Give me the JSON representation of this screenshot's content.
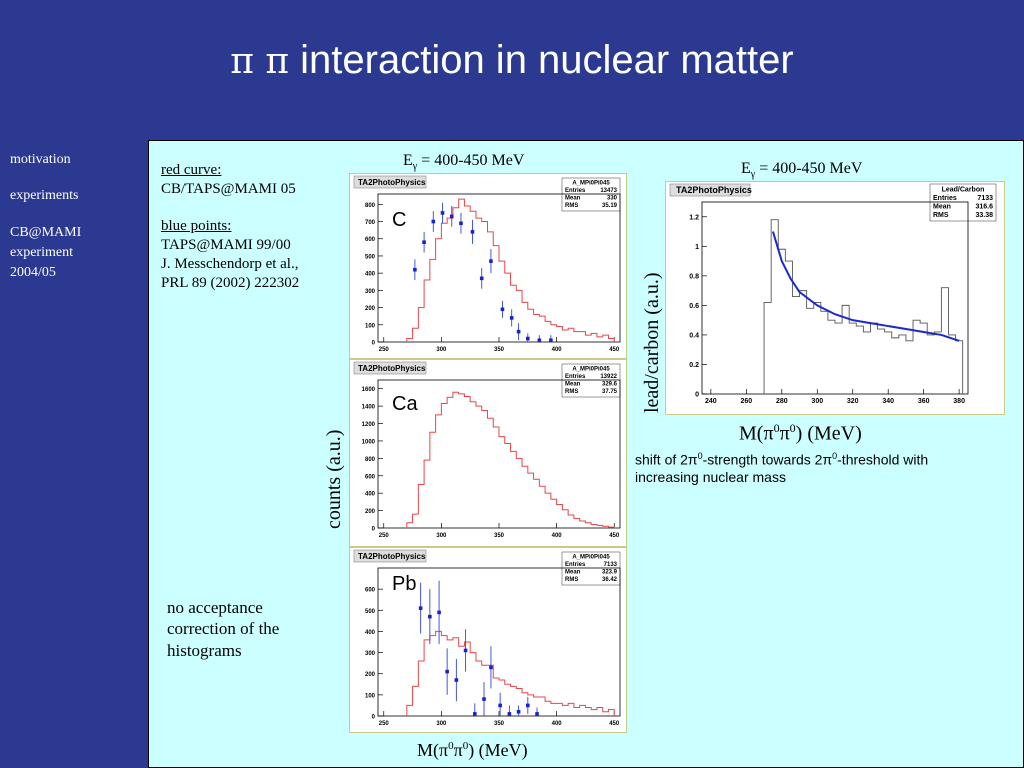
{
  "title": {
    "prefix": "π π",
    "text": " interaction in nuclear matter"
  },
  "sidebar": {
    "items": [
      "motivation",
      "experiments",
      "CB@MAMI",
      "experiment",
      "2004/05"
    ]
  },
  "notes": {
    "red_head": "red curve:",
    "red_body": "CB/TAPS@MAMI 05",
    "blue_head": "blue points:",
    "blue_l1": "TAPS@MAMI 99/00",
    "blue_l2": "J. Messchendorp et al.,",
    "blue_l3": "PRL 89 (2002) 222302",
    "acc_l1": "no acceptance",
    "acc_l2": "correction of the",
    "acc_l3": "histograms",
    "shift_l1a": "shift of 2",
    "shift_pi1": "π",
    "shift_sup1": "0",
    "shift_l1b": "-strength towards 2",
    "shift_pi2": "π",
    "shift_sup2": "0",
    "shift_l1c": "-threshold with",
    "shift_l2": "increasing nuclear mass"
  },
  "labels": {
    "egamma_E": "E",
    "egamma_sub": "γ",
    "egamma_rest": " = 400-450 MeV",
    "counts": "counts (a.u.)",
    "leadcarbon": "lead/carbon (a.u.)",
    "mass_pre": "M(",
    "mass_pi": "π",
    "mass_sup": "0",
    "mass_post": ") (MeV)"
  },
  "chart_data": [
    {
      "type": "bar",
      "label": "C",
      "header": "TA2PhotoPhysics",
      "stats": {
        "name": "A_MPi0Pi045",
        "Entries": "13473",
        "Mean": "330",
        "RMS": "35.19"
      },
      "xlim": [
        245,
        455
      ],
      "ylim": [
        0,
        860
      ],
      "xticks": [
        "250",
        "300",
        "350",
        "400",
        "450"
      ],
      "yticks": [
        "0",
        "100",
        "200",
        "300",
        "400",
        "500",
        "600",
        "700",
        "800"
      ],
      "red_x": [
        270,
        275,
        280,
        285,
        290,
        295,
        300,
        305,
        310,
        315,
        320,
        325,
        330,
        335,
        340,
        345,
        350,
        355,
        360,
        365,
        370,
        375,
        380,
        385,
        390,
        395,
        400,
        405,
        410,
        415,
        420,
        425,
        430,
        435,
        440,
        445,
        450
      ],
      "red_y": [
        20,
        80,
        200,
        360,
        480,
        600,
        690,
        720,
        780,
        830,
        790,
        760,
        720,
        700,
        640,
        560,
        470,
        400,
        330,
        300,
        230,
        190,
        160,
        150,
        120,
        100,
        90,
        70,
        80,
        60,
        60,
        40,
        50,
        30,
        40,
        20
      ],
      "blue_points": [
        {
          "x": 277,
          "y": 420,
          "err": 60
        },
        {
          "x": 285,
          "y": 580,
          "err": 60
        },
        {
          "x": 293,
          "y": 700,
          "err": 60
        },
        {
          "x": 301,
          "y": 750,
          "err": 60
        },
        {
          "x": 309,
          "y": 730,
          "err": 60
        },
        {
          "x": 317,
          "y": 690,
          "err": 60
        },
        {
          "x": 327,
          "y": 640,
          "err": 70
        },
        {
          "x": 335,
          "y": 370,
          "err": 60
        },
        {
          "x": 343,
          "y": 470,
          "err": 70
        },
        {
          "x": 353,
          "y": 190,
          "err": 50
        },
        {
          "x": 361,
          "y": 140,
          "err": 50
        },
        {
          "x": 367,
          "y": 60,
          "err": 50
        },
        {
          "x": 375,
          "y": 20,
          "err": 30
        },
        {
          "x": 385,
          "y": 10,
          "err": 30
        },
        {
          "x": 395,
          "y": 10,
          "err": 30
        }
      ]
    },
    {
      "type": "bar",
      "label": "Ca",
      "header": "TA2PhotoPhysics",
      "stats": {
        "name": "A_MPi0Pi045",
        "Entries": "13922",
        "Mean": "329.6",
        "RMS": "37.75"
      },
      "xlim": [
        245,
        455
      ],
      "ylim": [
        0,
        1700
      ],
      "xticks": [
        "250",
        "300",
        "350",
        "400",
        "450"
      ],
      "yticks": [
        "0",
        "200",
        "400",
        "600",
        "800",
        "1000",
        "1200",
        "1400",
        "1600"
      ],
      "red_x": [
        270,
        275,
        280,
        285,
        290,
        295,
        300,
        305,
        310,
        315,
        320,
        325,
        330,
        335,
        340,
        345,
        350,
        355,
        360,
        365,
        370,
        375,
        380,
        385,
        390,
        395,
        400,
        405,
        410,
        415,
        420,
        425,
        430,
        435,
        440,
        445,
        450
      ],
      "red_y": [
        60,
        160,
        500,
        780,
        1100,
        1300,
        1430,
        1500,
        1560,
        1540,
        1510,
        1450,
        1400,
        1350,
        1260,
        1160,
        1050,
        970,
        880,
        800,
        710,
        630,
        560,
        480,
        400,
        330,
        270,
        210,
        150,
        110,
        80,
        60,
        40,
        30,
        20,
        10
      ],
      "blue_points": []
    },
    {
      "type": "bar",
      "label": "Pb",
      "header": "TA2PhotoPhysics",
      "stats": {
        "name": "A_MPi0Pi045",
        "Entries": "7133",
        "Mean": "323.9",
        "RMS": "36.42"
      },
      "xlim": [
        245,
        455
      ],
      "ylim": [
        0,
        700
      ],
      "xticks": [
        "250",
        "300",
        "350",
        "400",
        "450"
      ],
      "yticks": [
        "0",
        "100",
        "200",
        "300",
        "400",
        "500",
        "600"
      ],
      "red_x": [
        270,
        275,
        280,
        285,
        290,
        295,
        300,
        305,
        310,
        315,
        320,
        325,
        330,
        335,
        340,
        345,
        350,
        355,
        360,
        365,
        370,
        375,
        380,
        385,
        390,
        395,
        400,
        405,
        410,
        415,
        420,
        425,
        430,
        435,
        440,
        445,
        450
      ],
      "red_y": [
        50,
        140,
        260,
        360,
        380,
        400,
        380,
        360,
        370,
        330,
        350,
        300,
        260,
        240,
        240,
        180,
        170,
        150,
        140,
        130,
        110,
        100,
        90,
        90,
        70,
        60,
        60,
        50,
        60,
        40,
        50,
        40,
        30,
        40,
        20,
        30
      ],
      "blue_points": [
        {
          "x": 282,
          "y": 510,
          "err": 120
        },
        {
          "x": 290,
          "y": 470,
          "err": 130
        },
        {
          "x": 298,
          "y": 490,
          "err": 150
        },
        {
          "x": 305,
          "y": 210,
          "err": 110
        },
        {
          "x": 313,
          "y": 170,
          "err": 100
        },
        {
          "x": 321,
          "y": 310,
          "err": 100
        },
        {
          "x": 329,
          "y": 10,
          "err": 50
        },
        {
          "x": 337,
          "y": 80,
          "err": 80
        },
        {
          "x": 343,
          "y": 230,
          "err": 100
        },
        {
          "x": 351,
          "y": 50,
          "err": 60
        },
        {
          "x": 359,
          "y": 10,
          "err": 40
        },
        {
          "x": 367,
          "y": 20,
          "err": 30
        },
        {
          "x": 375,
          "y": 50,
          "err": 40
        },
        {
          "x": 383,
          "y": 10,
          "err": 30
        }
      ]
    },
    {
      "type": "line",
      "label": "lead/carbon",
      "header": "TA2PhotoPhysics",
      "stats": {
        "name": "Lead/Carbon",
        "Entries": "7133",
        "Mean": "316.6",
        "RMS": "33.38"
      },
      "xlim": [
        235,
        385
      ],
      "ylim": [
        0,
        1.3
      ],
      "xticks": [
        "240",
        "260",
        "280",
        "300",
        "320",
        "340",
        "360",
        "380"
      ],
      "yticks": [
        "0",
        "0.2",
        "0.4",
        "0.6",
        "0.8",
        "1",
        "1.2"
      ],
      "hist_x": [
        270,
        274,
        278,
        282,
        286,
        290,
        294,
        298,
        302,
        306,
        310,
        314,
        318,
        322,
        326,
        330,
        334,
        338,
        342,
        346,
        350,
        354,
        358,
        362,
        366,
        370,
        374,
        378,
        382
      ],
      "hist_y": [
        0.62,
        1.18,
        0.98,
        0.9,
        0.66,
        0.7,
        0.58,
        0.62,
        0.56,
        0.5,
        0.48,
        0.6,
        0.48,
        0.46,
        0.42,
        0.48,
        0.44,
        0.42,
        0.38,
        0.4,
        0.36,
        0.5,
        0.48,
        0.4,
        0.42,
        0.72,
        0.4,
        0.36
      ],
      "fit_x": [
        275,
        280,
        285,
        290,
        300,
        310,
        320,
        330,
        340,
        350,
        360,
        370,
        380
      ],
      "fit_y": [
        1.1,
        0.9,
        0.78,
        0.69,
        0.6,
        0.54,
        0.5,
        0.48,
        0.46,
        0.44,
        0.42,
        0.4,
        0.36
      ]
    }
  ]
}
